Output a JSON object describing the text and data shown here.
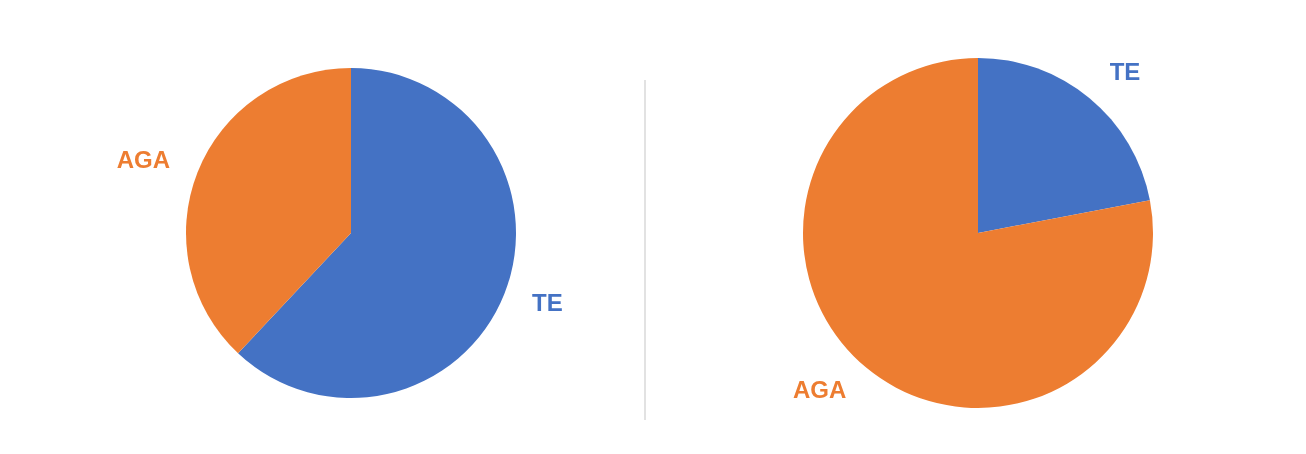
{
  "chart_data": [
    {
      "type": "pie",
      "categories": [
        "TE",
        "AGA"
      ],
      "values": [
        62,
        38
      ],
      "colors": [
        "#4472c4",
        "#ed7d31"
      ]
    },
    {
      "type": "pie",
      "categories": [
        "TE",
        "AGA"
      ],
      "values": [
        22,
        78
      ],
      "colors": [
        "#4472c4",
        "#ed7d31"
      ]
    }
  ]
}
